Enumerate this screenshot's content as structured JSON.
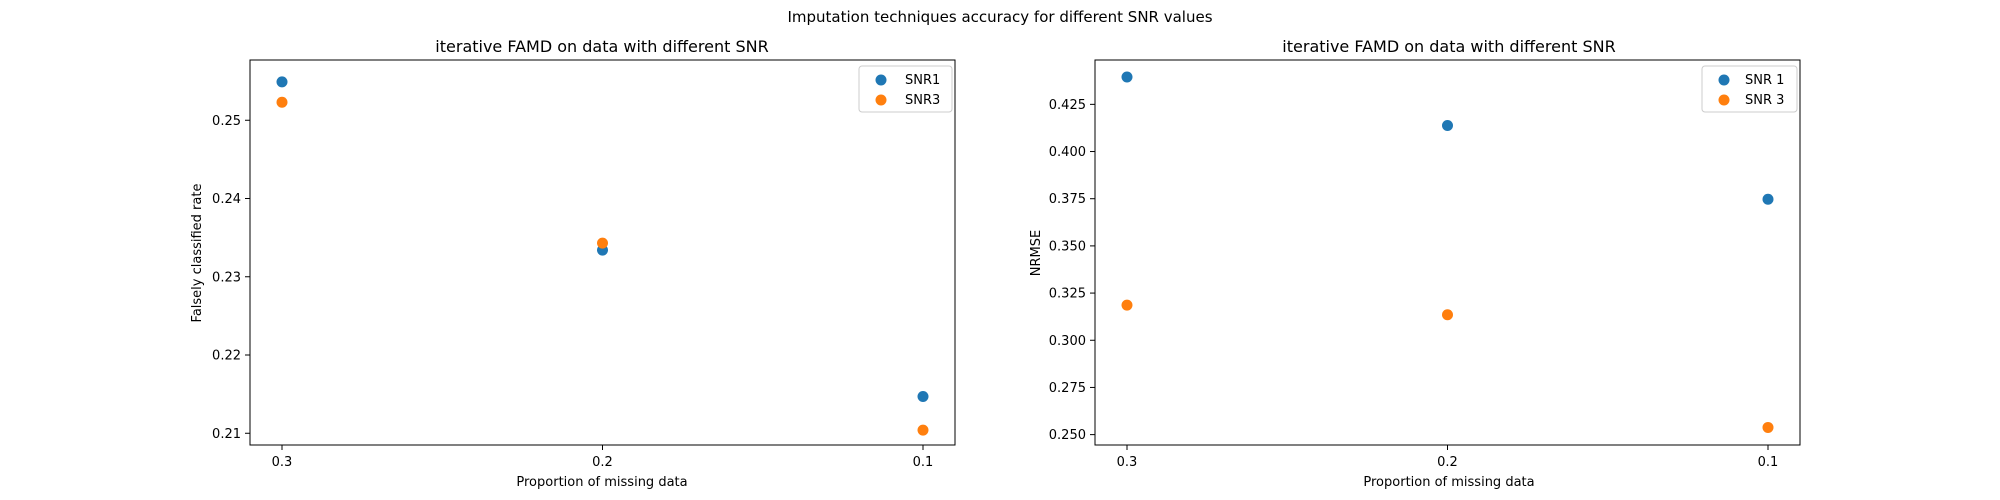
{
  "figure_title": "Imputation techniques accuracy for different SNR values",
  "colors": {
    "series1": "#1f77b4",
    "series2": "#ff7f0e",
    "frame": "#000000",
    "legend_border": "#cccccc"
  },
  "chart_data": [
    {
      "type": "scatter",
      "title": "iterative FAMD on data with different SNR",
      "xlabel": "Proportion of missing data",
      "ylabel": "Falsely classified rate",
      "categories": [
        "0.3",
        "0.2",
        "0.1"
      ],
      "ylim": [
        0.2085,
        0.2577
      ],
      "yticks": [
        0.21,
        0.22,
        0.23,
        0.24,
        0.25
      ],
      "ytick_labels": [
        "0.21",
        "0.22",
        "0.23",
        "0.24",
        "0.25"
      ],
      "grid": false,
      "legend_position": "top-right",
      "series": [
        {
          "name": "SNR1",
          "values": [
            0.2549,
            0.2334,
            0.2147
          ]
        },
        {
          "name": "SNR3",
          "values": [
            0.2523,
            0.2343,
            0.2104
          ]
        }
      ]
    },
    {
      "type": "scatter",
      "title": "iterative FAMD on data with different SNR",
      "xlabel": "Proportion of missing data",
      "ylabel": "NRMSE",
      "categories": [
        "0.3",
        "0.2",
        "0.1"
      ],
      "ylim": [
        0.2445,
        0.4485
      ],
      "yticks": [
        0.25,
        0.275,
        0.3,
        0.325,
        0.35,
        0.375,
        0.4,
        0.425
      ],
      "ytick_labels": [
        "0.250",
        "0.275",
        "0.300",
        "0.325",
        "0.350",
        "0.375",
        "0.400",
        "0.425"
      ],
      "grid": false,
      "legend_position": "top-right",
      "series": [
        {
          "name": "SNR 1",
          "values": [
            0.4395,
            0.4138,
            0.3747
          ]
        },
        {
          "name": "SNR 3",
          "values": [
            0.3186,
            0.3135,
            0.2538
          ]
        }
      ]
    }
  ]
}
